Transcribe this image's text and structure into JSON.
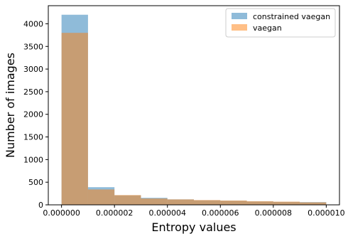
{
  "chart_data": {
    "type": "histogram",
    "xlabel": "Entropy values",
    "ylabel": "Number of images",
    "xlim": [
      -5e-07,
      1.05e-05
    ],
    "ylim": [
      0,
      4400
    ],
    "x_ticks": [
      0.0,
      2e-06,
      4e-06,
      6e-06,
      8e-06,
      1e-05
    ],
    "x_tick_labels": [
      "0.000000",
      "0.000002",
      "0.000004",
      "0.000006",
      "0.000008",
      "0.000010"
    ],
    "y_ticks": [
      0,
      500,
      1000,
      1500,
      2000,
      2500,
      3000,
      3500,
      4000
    ],
    "y_tick_labels": [
      "0",
      "500",
      "1000",
      "1500",
      "2000",
      "2500",
      "3000",
      "3500",
      "4000"
    ],
    "bin_edges": [
      0.0,
      1e-06,
      2e-06,
      3e-06,
      4e-06,
      5e-06,
      6e-06,
      7e-06,
      8e-06,
      9e-06,
      1e-05
    ],
    "series": [
      {
        "name": "constrained vaegan",
        "color": "#1f77b4",
        "alpha": 0.5,
        "values": [
          4200,
          390,
          210,
          155,
          120,
          100,
          90,
          75,
          65,
          60
        ]
      },
      {
        "name": "vaegan",
        "color": "#ff7f0e",
        "alpha": 0.5,
        "values": [
          3800,
          340,
          215,
          140,
          120,
          105,
          95,
          80,
          70,
          55
        ]
      }
    ],
    "legend_position": "top-right",
    "grid": false
  }
}
